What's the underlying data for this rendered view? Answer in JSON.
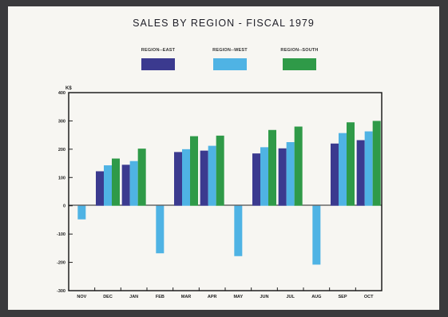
{
  "chart_data": {
    "type": "bar",
    "title": "SALES BY REGION  -  FISCAL 1979",
    "ylabel": "K$",
    "ylim": [
      -300,
      400
    ],
    "yticks": [
      400,
      300,
      200,
      100,
      0,
      -100,
      -200,
      -300
    ],
    "categories": [
      "NOV",
      "DEC",
      "JAN",
      "FEB",
      "MAR",
      "APR",
      "MAY",
      "JUN",
      "JUL",
      "AUG",
      "SEP",
      "OCT"
    ],
    "series": [
      {
        "name": "REGION--EAST",
        "color": "#3b3a8f",
        "values": [
          0,
          122,
          145,
          0,
          190,
          195,
          0,
          185,
          203,
          0,
          220,
          232
        ]
      },
      {
        "name": "REGION--WEST",
        "color": "#4fb3e4",
        "values": [
          -48,
          143,
          158,
          -168,
          200,
          212,
          -178,
          207,
          225,
          -208,
          257,
          263
        ]
      },
      {
        "name": "REGION--SOUTH",
        "color": "#2f9a48",
        "values": [
          0,
          167,
          202,
          0,
          246,
          248,
          0,
          268,
          280,
          0,
          295,
          300
        ]
      }
    ],
    "grid": false,
    "legend": "top"
  }
}
